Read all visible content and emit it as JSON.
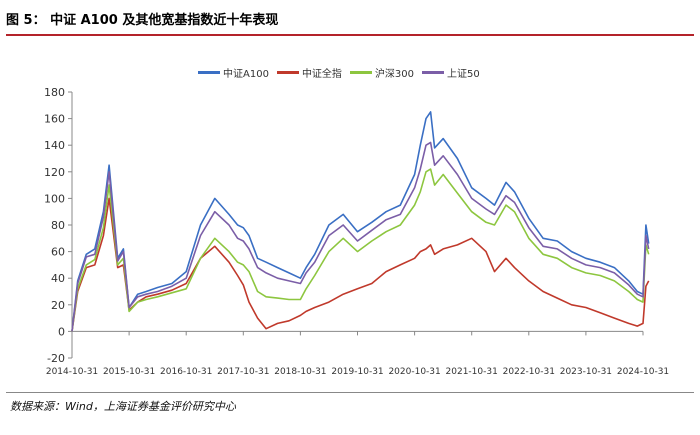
{
  "figure": {
    "title": "图 5： 中证 A100 及其他宽基指数近十年表现",
    "source": "数据来源：Wind，上海证券基金评价研究中心"
  },
  "chart_data": {
    "type": "line",
    "title": "",
    "xlabel": "",
    "ylabel": "",
    "ylim": [
      -20,
      180
    ],
    "yticks": [
      -20,
      0,
      20,
      40,
      60,
      80,
      100,
      120,
      140,
      160,
      180
    ],
    "xticks": [
      "2014-10-31",
      "2015-10-31",
      "2016-10-31",
      "2017-10-31",
      "2018-10-31",
      "2019-10-31",
      "2020-10-31",
      "2021-10-31",
      "2022-10-31",
      "2023-10-31",
      "2024-10-31"
    ],
    "grid": false,
    "legend_position": "top",
    "x": [
      0,
      0.1,
      0.25,
      0.4,
      0.55,
      0.65,
      0.8,
      0.9,
      1.0,
      1.15,
      1.3,
      1.5,
      1.75,
      2.0,
      2.25,
      2.5,
      2.75,
      2.9,
      3.0,
      3.1,
      3.25,
      3.4,
      3.6,
      3.8,
      4.0,
      4.1,
      4.25,
      4.5,
      4.75,
      5.0,
      5.25,
      5.5,
      5.75,
      6.0,
      6.1,
      6.2,
      6.28,
      6.35,
      6.5,
      6.75,
      7.0,
      7.25,
      7.4,
      7.6,
      7.75,
      8.0,
      8.25,
      8.5,
      8.75,
      9.0,
      9.25,
      9.5,
      9.75,
      9.9,
      10.0,
      10.05,
      10.1
    ],
    "series": [
      {
        "name": "中证A100",
        "color": "#3a6fc4",
        "values": [
          0,
          38,
          58,
          62,
          90,
          125,
          55,
          62,
          18,
          28,
          30,
          33,
          36,
          45,
          80,
          100,
          88,
          80,
          78,
          72,
          55,
          52,
          48,
          44,
          40,
          48,
          58,
          80,
          88,
          75,
          82,
          90,
          95,
          118,
          140,
          160,
          165,
          138,
          145,
          130,
          108,
          100,
          95,
          112,
          105,
          85,
          70,
          68,
          60,
          55,
          52,
          48,
          38,
          30,
          28,
          80,
          66
        ]
      },
      {
        "name": "中证全指",
        "color": "#c0392b",
        "values": [
          0,
          30,
          48,
          50,
          72,
          100,
          48,
          50,
          16,
          22,
          26,
          28,
          31,
          36,
          55,
          64,
          52,
          42,
          35,
          22,
          10,
          2,
          6,
          8,
          12,
          15,
          18,
          22,
          28,
          32,
          36,
          45,
          50,
          55,
          60,
          62,
          65,
          58,
          62,
          65,
          70,
          60,
          45,
          55,
          48,
          38,
          30,
          25,
          20,
          18,
          14,
          10,
          6,
          4,
          6,
          34,
          38
        ]
      },
      {
        "name": "沪深300",
        "color": "#8dc63f",
        "values": [
          0,
          32,
          50,
          54,
          78,
          110,
          50,
          55,
          15,
          22,
          24,
          26,
          29,
          32,
          55,
          70,
          60,
          52,
          50,
          45,
          30,
          26,
          25,
          24,
          24,
          32,
          42,
          60,
          70,
          60,
          68,
          75,
          80,
          95,
          105,
          120,
          122,
          110,
          118,
          104,
          90,
          82,
          80,
          95,
          90,
          70,
          58,
          55,
          48,
          44,
          42,
          38,
          30,
          24,
          22,
          65,
          58
        ]
      },
      {
        "name": "上证50",
        "color": "#7b5ea7",
        "values": [
          0,
          36,
          56,
          58,
          86,
          120,
          53,
          60,
          18,
          26,
          28,
          30,
          34,
          40,
          72,
          90,
          80,
          70,
          68,
          62,
          48,
          44,
          40,
          38,
          36,
          44,
          52,
          72,
          80,
          68,
          76,
          84,
          88,
          108,
          122,
          140,
          142,
          125,
          132,
          118,
          100,
          92,
          88,
          102,
          97,
          78,
          64,
          62,
          55,
          50,
          48,
          44,
          35,
          28,
          26,
          72,
          62
        ]
      }
    ]
  }
}
